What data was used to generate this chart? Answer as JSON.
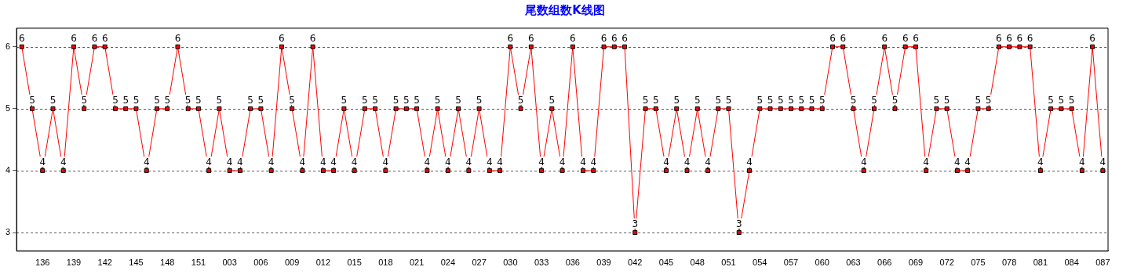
{
  "chart_data": {
    "type": "line",
    "title": "尾数组数K线图",
    "categories": [
      null,
      null,
      "136",
      null,
      null,
      "139",
      null,
      null,
      "142",
      null,
      null,
      "145",
      null,
      null,
      "148",
      null,
      null,
      "151",
      null,
      null,
      "003",
      null,
      null,
      "006",
      null,
      null,
      "009",
      null,
      null,
      "012",
      null,
      null,
      "015",
      null,
      null,
      "018",
      null,
      null,
      "021",
      null,
      null,
      "024",
      null,
      null,
      "027",
      null,
      null,
      "030",
      null,
      null,
      "033",
      null,
      null,
      "036",
      null,
      null,
      "039",
      null,
      null,
      "042",
      null,
      null,
      "045",
      null,
      null,
      "048",
      null,
      null,
      "051",
      null,
      null,
      "054",
      null,
      null,
      "057",
      null,
      null,
      "060",
      null,
      null,
      "063",
      null,
      null,
      "066",
      null,
      null,
      "069",
      null,
      null,
      "072",
      null,
      null,
      "075",
      null,
      null,
      "078",
      null,
      null,
      "081",
      null,
      null,
      "084",
      null,
      null,
      "087"
    ],
    "series": [
      {
        "color": "#ff0000",
        "values": [
          6,
          5,
          4,
          5,
          4,
          6,
          5,
          6,
          6,
          5,
          5,
          5,
          4,
          5,
          5,
          6,
          5,
          5,
          4,
          5,
          4,
          4,
          5,
          5,
          4,
          6,
          5,
          4,
          6,
          4,
          4,
          5,
          4,
          5,
          5,
          4,
          5,
          5,
          5,
          4,
          5,
          4,
          5,
          4,
          5,
          4,
          4,
          6,
          5,
          6,
          4,
          5,
          4,
          6,
          4,
          4,
          6,
          6,
          6,
          3,
          5,
          5,
          4,
          5,
          4,
          5,
          4,
          5,
          5,
          3,
          4,
          5,
          5,
          5,
          5,
          5,
          5,
          5,
          6,
          6,
          5,
          4,
          5,
          6,
          5,
          6,
          6,
          4,
          5,
          5,
          4,
          4,
          5,
          5,
          6,
          6,
          6,
          6,
          4,
          5,
          5,
          5,
          4,
          6,
          4
        ]
      }
    ],
    "ylim": [
      2.7,
      6.3
    ],
    "yticks": [
      3,
      4,
      5,
      6
    ],
    "grid": "y",
    "legend": false,
    "marker": "square",
    "line_style": "solid",
    "data_labels": true
  }
}
